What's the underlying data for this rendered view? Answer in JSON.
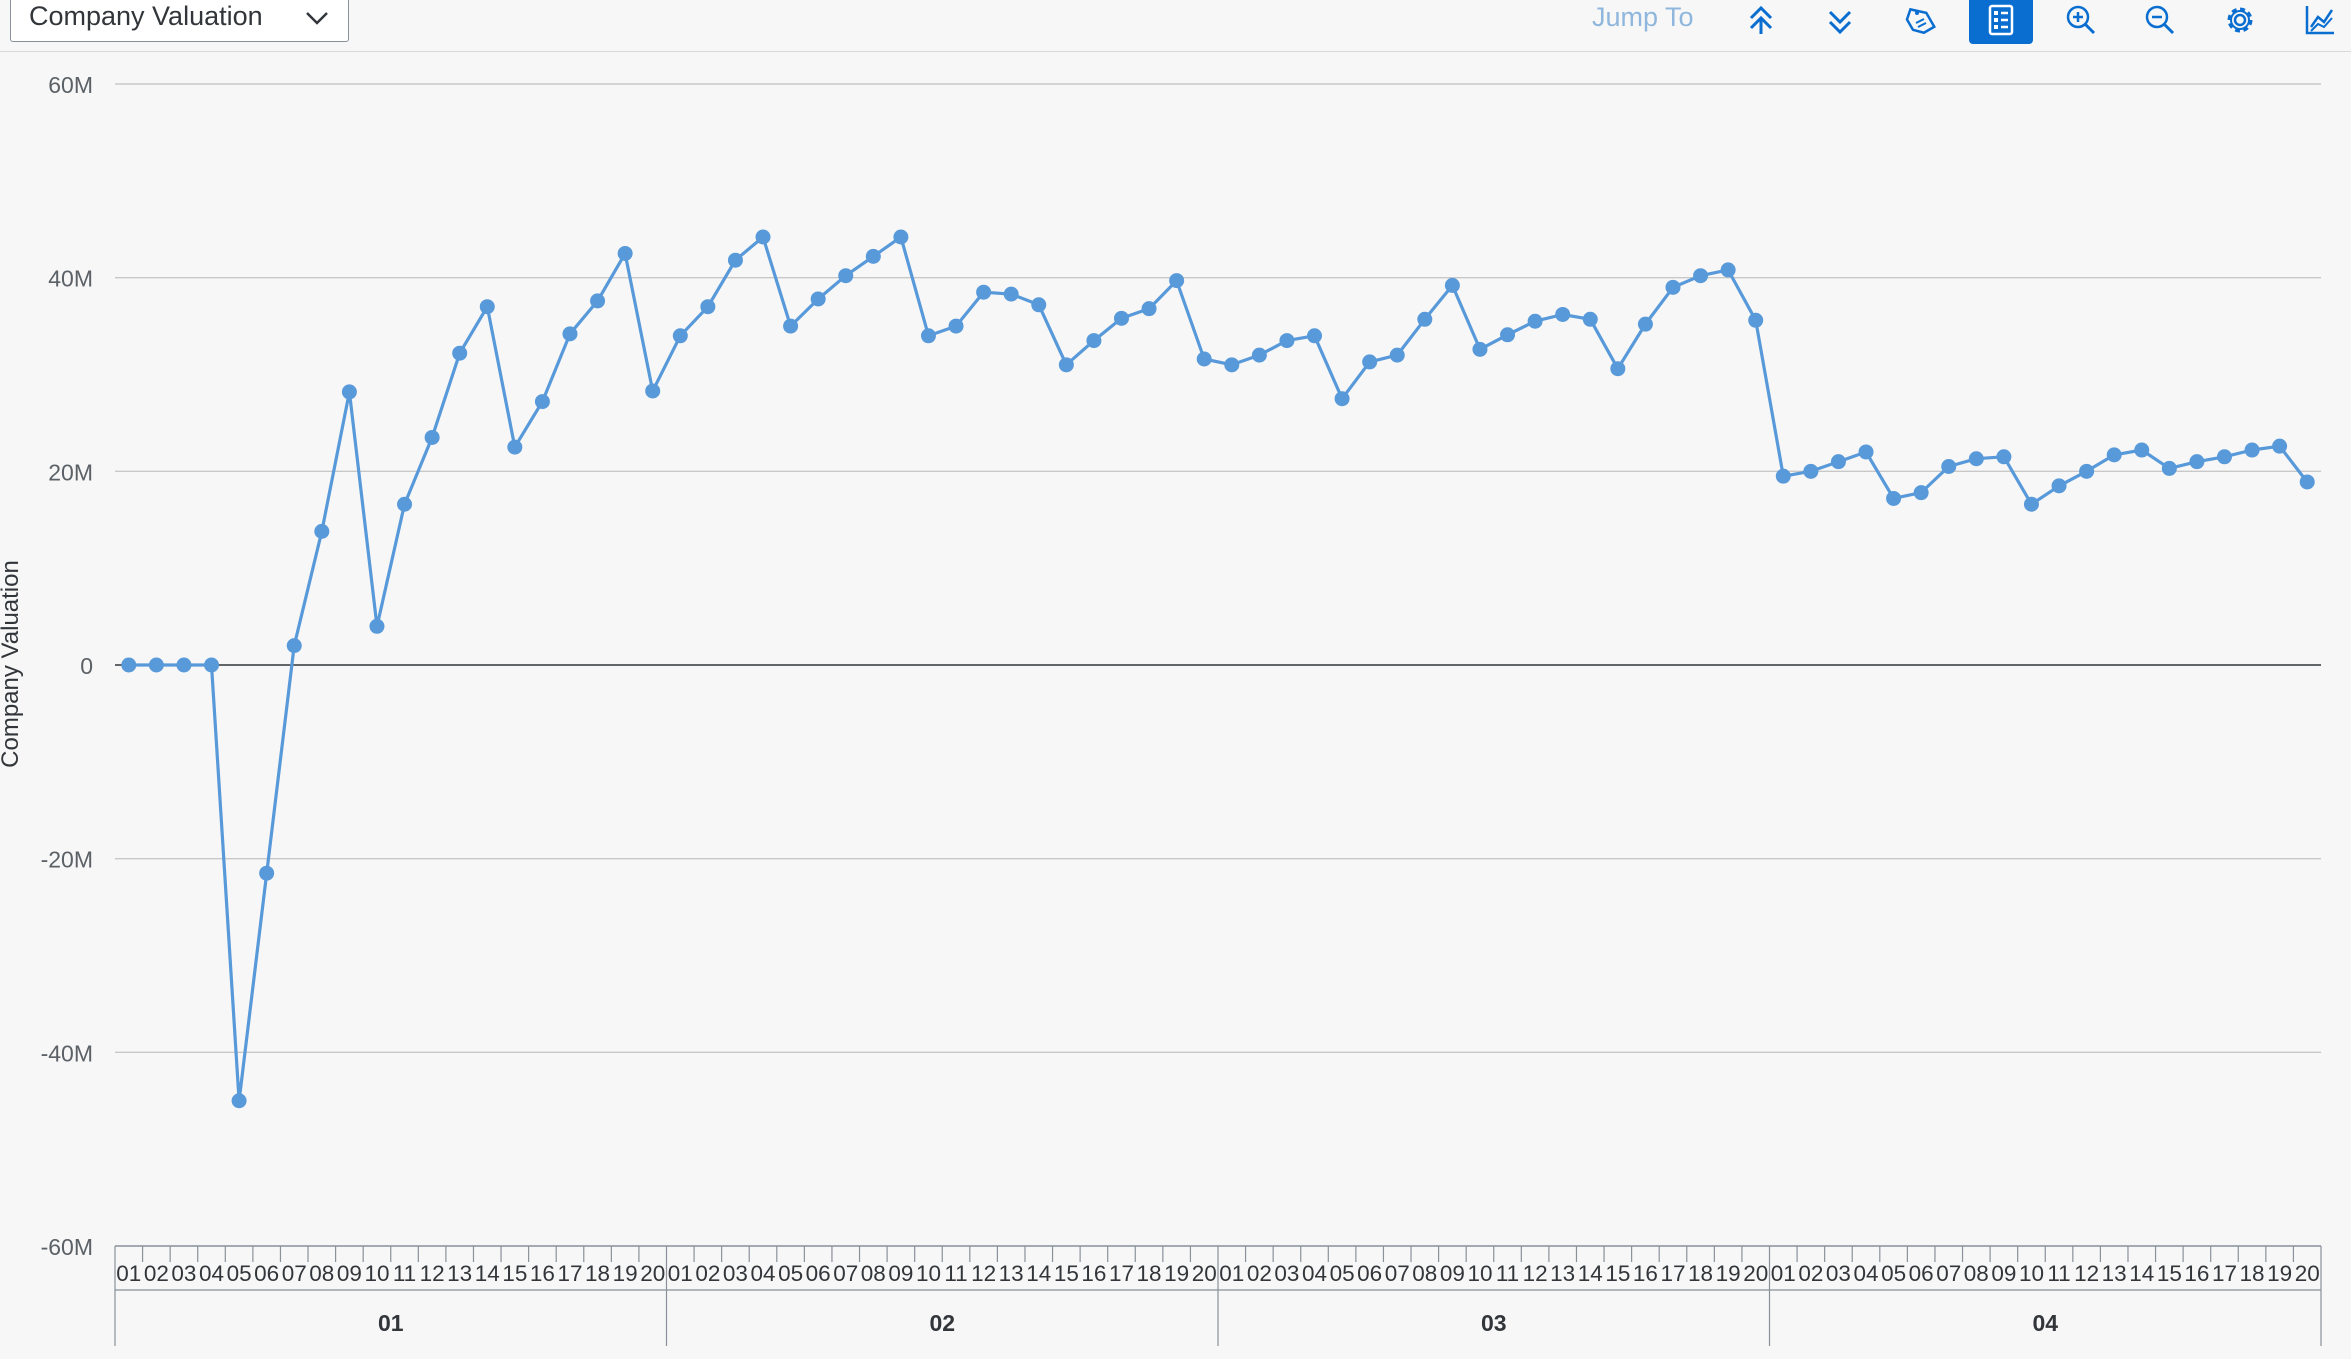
{
  "toolbar": {
    "measure_label": "Company Valuation",
    "jump_to_label": "Jump To",
    "buttons": [
      {
        "name": "collapse-all-button",
        "icon": "double-chevron-up-icon"
      },
      {
        "name": "expand-all-button",
        "icon": "double-chevron-down-icon"
      },
      {
        "name": "data-labels-button",
        "icon": "tag-icon"
      },
      {
        "name": "legend-button",
        "icon": "legend-list-icon",
        "active": true
      },
      {
        "name": "zoom-in-button",
        "icon": "zoom-in-icon"
      },
      {
        "name": "zoom-out-icon-button",
        "icon": "zoom-out-icon"
      },
      {
        "name": "settings-button",
        "icon": "gear-icon"
      },
      {
        "name": "chart-type-button",
        "icon": "line-chart-icon"
      }
    ],
    "accent_color": "#0a6ed1"
  },
  "chart_data": {
    "type": "line",
    "ylabel": "Company Valuation",
    "ylim": [
      -60000000,
      60000000
    ],
    "yticks": [
      60000000,
      40000000,
      20000000,
      0,
      -20000000,
      -40000000,
      -60000000
    ],
    "ytick_labels": [
      "60M",
      "40M",
      "20M",
      "0",
      "-20M",
      "-40M",
      "-60M"
    ],
    "grid": true,
    "line_color": "#5899da",
    "groups": [
      "01",
      "02",
      "03",
      "04"
    ],
    "sub_categories": [
      "01",
      "02",
      "03",
      "04",
      "05",
      "06",
      "07",
      "08",
      "09",
      "10",
      "11",
      "12",
      "13",
      "14",
      "15",
      "16",
      "17",
      "18",
      "19",
      "20"
    ],
    "series": [
      {
        "values": [
          0,
          0,
          0,
          0,
          -45000000,
          -21500000,
          2000000,
          13800000,
          28200000,
          4000000,
          16600000,
          23500000,
          32200000,
          37000000,
          22500000,
          27200000,
          34200000,
          37600000,
          42500000,
          28300000,
          34000000,
          37000000,
          41800000,
          44200000,
          35000000,
          37800000,
          40200000,
          42200000,
          44200000,
          34000000,
          35000000,
          38500000,
          38300000,
          37200000,
          31000000,
          33500000,
          35800000,
          36800000,
          39700000,
          31600000,
          31000000,
          32000000,
          33500000,
          34000000,
          27500000,
          31300000,
          32000000,
          35700000,
          39200000,
          32600000,
          34100000,
          35500000,
          36200000,
          35700000,
          30600000,
          35200000,
          39000000,
          40200000,
          40800000,
          35600000,
          19500000,
          20000000,
          21000000,
          22000000,
          17200000,
          17800000,
          20500000,
          21300000,
          21500000,
          16600000,
          18500000,
          20000000,
          21700000,
          22200000,
          20300000,
          21000000,
          21500000,
          22200000,
          22600000,
          18900000
        ]
      }
    ]
  }
}
